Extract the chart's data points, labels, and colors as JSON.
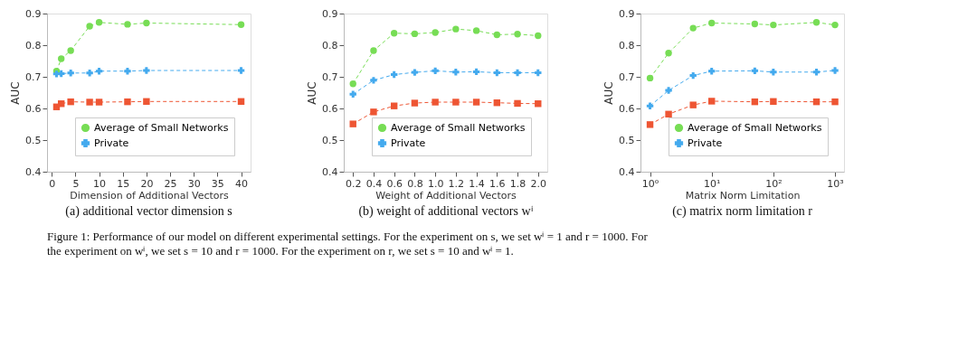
{
  "chart_data": [
    {
      "type": "line",
      "title": "(a) additional vector dimension s",
      "xlabel": "Dimension of Additional Vectors",
      "ylabel": "AUC",
      "x": [
        1,
        2,
        4,
        8,
        10,
        16,
        20,
        40
      ],
      "xlim": [
        -1,
        42
      ],
      "xticks": [
        0,
        5,
        10,
        15,
        20,
        25,
        30,
        35,
        40
      ],
      "ylim": [
        0.4,
        0.9
      ],
      "yticks": [
        0.4,
        0.5,
        0.6,
        0.7,
        0.8,
        0.9
      ],
      "legend": "bottom right",
      "grid": false,
      "line_style": "dashed",
      "series": [
        {
          "name": "Average of Small Networks",
          "color": "#77dd55",
          "marker": "circle",
          "values": [
            0.718,
            0.757,
            0.783,
            0.86,
            0.872,
            0.866,
            0.87,
            0.865
          ]
        },
        {
          "color": "#ee5533",
          "marker": "square",
          "values": [
            0.605,
            0.615,
            0.621,
            0.62,
            0.62,
            0.621,
            0.622,
            0.622
          ]
        },
        {
          "name": "Private",
          "color": "#44aaee",
          "marker": "cross",
          "values": [
            0.709,
            0.71,
            0.712,
            0.712,
            0.718,
            0.718,
            0.72,
            0.72
          ]
        }
      ],
      "annotations": [
        "Figure 1: Performance of our model on different experimental settings. For the experiment on s, we set wⁱ = 1 and r = 1000. For the experiment on wⁱ, we set s = 10 and r = 1000. For the experiment on r, we set s = 10 and wⁱ = 1."
      ]
    },
    {
      "type": "line",
      "title": "(b) weight of additional vectors wⁱ",
      "xlabel": "Weight of Additional Vectors",
      "ylabel": "AUC",
      "x": [
        0.2,
        0.4,
        0.6,
        0.8,
        1.0,
        1.2,
        1.4,
        1.6,
        1.8,
        2.0
      ],
      "xlim": [
        0.11,
        2.09
      ],
      "xticks": [
        {
          "value": 0.2,
          "label": "0.2"
        },
        {
          "value": 0.4,
          "label": "0.4"
        },
        {
          "value": 0.6,
          "label": "0.6"
        },
        {
          "value": 0.8,
          "label": "0.8"
        },
        {
          "value": 1.0,
          "label": "1.0"
        },
        {
          "value": 1.2,
          "label": "1.2"
        },
        {
          "value": 1.4,
          "label": "1.4"
        },
        {
          "value": 1.6,
          "label": "1.6"
        },
        {
          "value": 1.8,
          "label": "1.8"
        },
        {
          "value": 2.0,
          "label": "2.0"
        }
      ],
      "ylim": [
        0.4,
        0.9
      ],
      "yticks": [
        0.4,
        0.5,
        0.6,
        0.7,
        0.8,
        0.9
      ],
      "legend": "bottom right",
      "grid": false,
      "line_style": "dashed",
      "series": [
        {
          "name": "Average of Small Networks",
          "color": "#77dd55",
          "marker": "circle",
          "values": [
            0.678,
            0.783,
            0.838,
            0.836,
            0.84,
            0.851,
            0.846,
            0.833,
            0.835,
            0.83
          ]
        },
        {
          "color": "#ee5533",
          "marker": "square",
          "values": [
            0.551,
            0.589,
            0.608,
            0.617,
            0.62,
            0.62,
            0.62,
            0.618,
            0.616,
            0.615
          ]
        },
        {
          "name": "Private",
          "color": "#44aaee",
          "marker": "cross",
          "values": [
            0.645,
            0.689,
            0.707,
            0.714,
            0.719,
            0.715,
            0.716,
            0.713,
            0.713,
            0.713
          ]
        }
      ]
    },
    {
      "type": "line",
      "title": "(c) matrix norm limitation r",
      "xlabel": "Matrix Norm Limitation",
      "ylabel": "AUC",
      "log": "x",
      "x": [
        1,
        2,
        5,
        10,
        50,
        100,
        500,
        1000
      ],
      "xlim": [
        0.7,
        1400
      ],
      "xticks": [
        {
          "value": 1,
          "label": "10⁰"
        },
        {
          "value": 10,
          "label": "10¹"
        },
        {
          "value": 100,
          "label": "10²"
        },
        {
          "value": 1000,
          "label": "10³"
        }
      ],
      "ylim": [
        0.4,
        0.9
      ],
      "yticks": [
        0.4,
        0.5,
        0.6,
        0.7,
        0.8,
        0.9
      ],
      "legend": "bottom right",
      "grid": false,
      "line_style": "dashed",
      "series": [
        {
          "name": "Average of Small Networks",
          "color": "#77dd55",
          "marker": "circle",
          "values": [
            0.696,
            0.775,
            0.854,
            0.87,
            0.867,
            0.864,
            0.872,
            0.864
          ]
        },
        {
          "color": "#ee5533",
          "marker": "square",
          "values": [
            0.549,
            0.582,
            0.611,
            0.623,
            0.621,
            0.622,
            0.621,
            0.621
          ]
        },
        {
          "name": "Private",
          "color": "#44aaee",
          "marker": "cross",
          "values": [
            0.608,
            0.657,
            0.704,
            0.718,
            0.719,
            0.715,
            0.715,
            0.72
          ]
        }
      ]
    }
  ]
}
